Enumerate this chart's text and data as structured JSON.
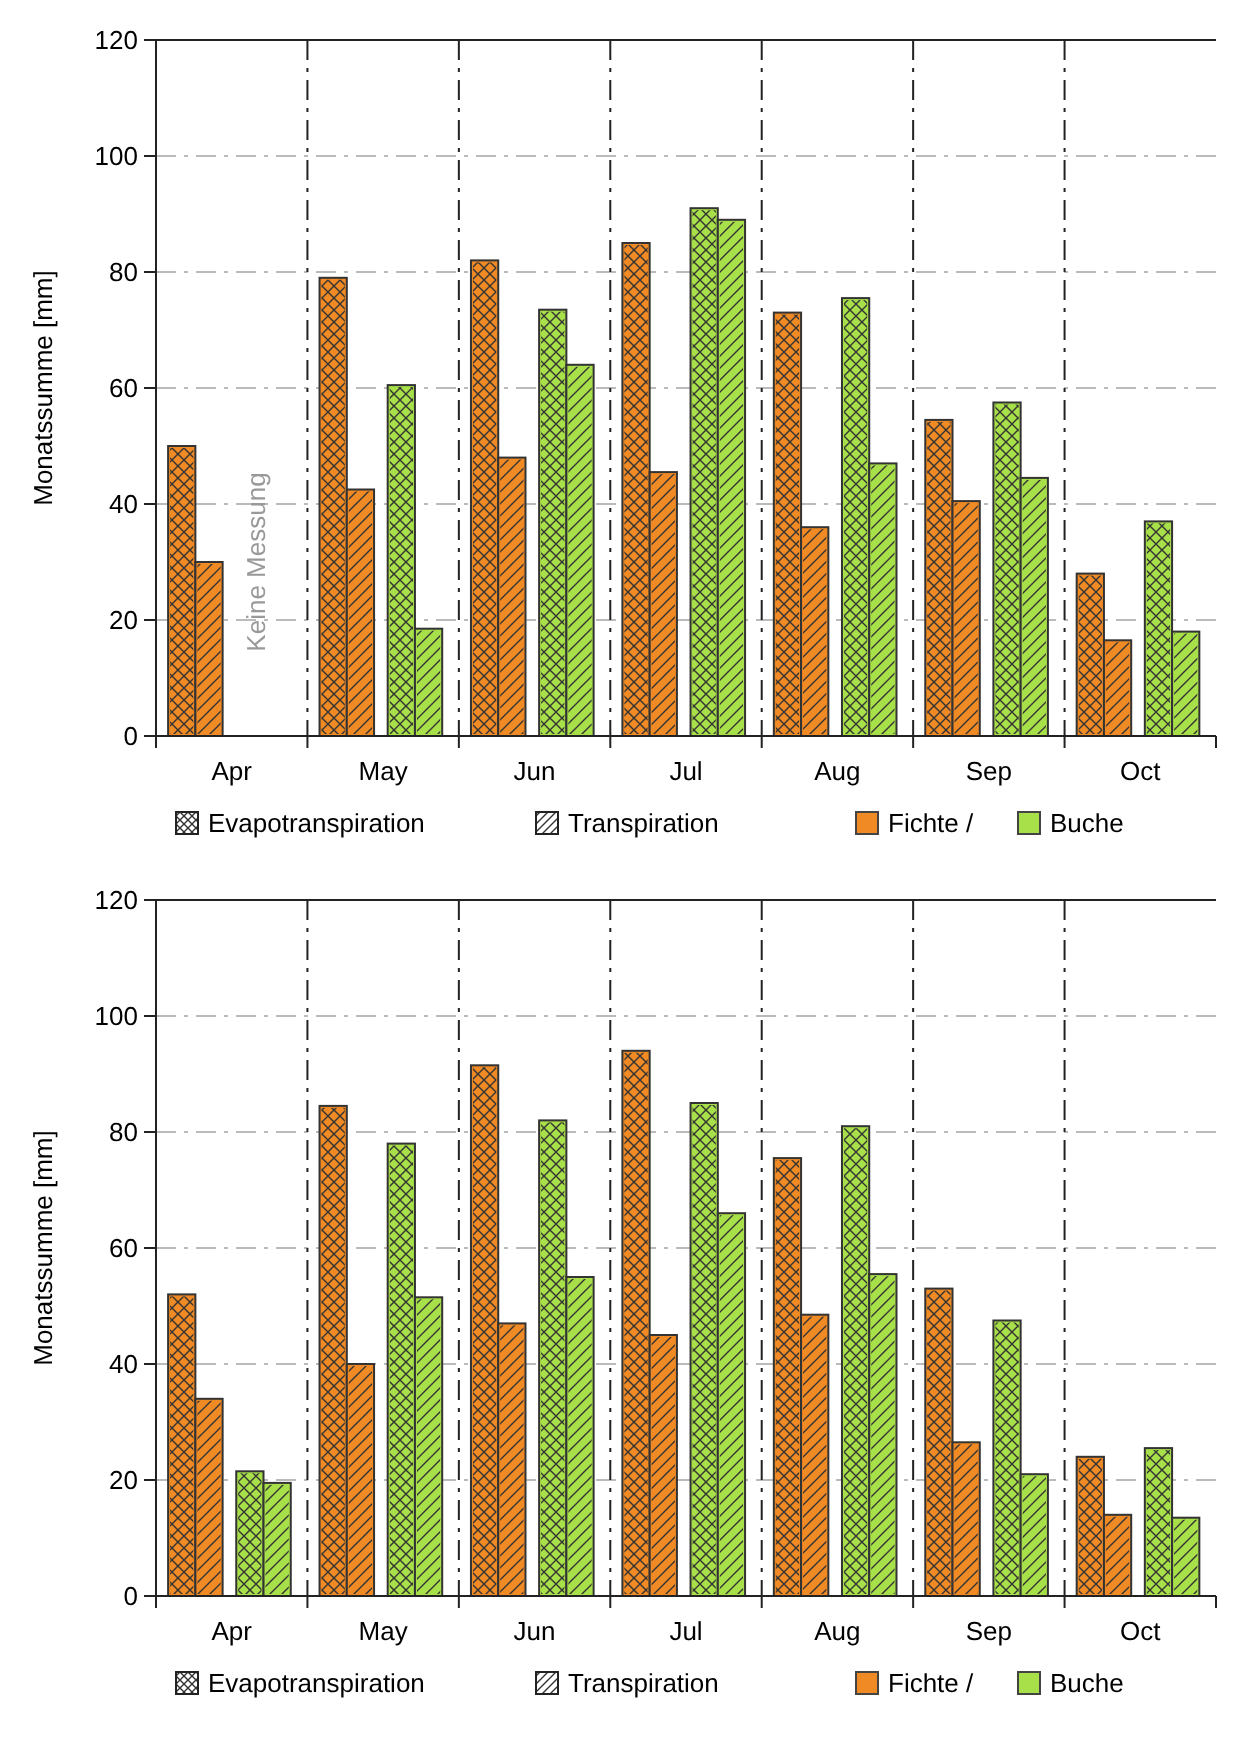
{
  "chart_data": [
    {
      "type": "bar",
      "ylabel": "Monatssumme [mm]",
      "categories": [
        "Apr",
        "May",
        "Jun",
        "Jul",
        "Aug",
        "Sep",
        "Oct"
      ],
      "series": [
        {
          "color": "#f08a24",
          "values": [
            50,
            79,
            82,
            85,
            73,
            54.5,
            28
          ]
        },
        {
          "color": "#f08a24",
          "values": [
            30,
            42.5,
            48,
            45.5,
            36,
            40.5,
            16.5
          ]
        },
        {
          "color": "#a8e04a",
          "values": [
            null,
            60.5,
            73.5,
            91,
            75.5,
            57.5,
            37
          ]
        },
        {
          "color": "#a8e04a",
          "values": [
            null,
            18.5,
            64,
            89,
            47,
            44.5,
            18
          ]
        }
      ],
      "ylim": [
        0,
        120
      ],
      "yticks": [
        0,
        20,
        40,
        60,
        80,
        100,
        120
      ],
      "grid": true,
      "annotations": [
        "Evapotranspiration",
        "Transpiration",
        "Fichte /",
        "Buche",
        "Keine Messung"
      ]
    },
    {
      "type": "bar",
      "ylabel": "Monatssumme [mm]",
      "categories": [
        "Apr",
        "May",
        "Jun",
        "Jul",
        "Aug",
        "Sep",
        "Oct"
      ],
      "series": [
        {
          "color": "#f08a24",
          "values": [
            52,
            84.5,
            91.5,
            94,
            75.5,
            53,
            24
          ]
        },
        {
          "color": "#f08a24",
          "values": [
            34,
            40,
            47,
            45,
            48.5,
            26.5,
            14
          ]
        },
        {
          "color": "#a8e04a",
          "values": [
            21.5,
            78,
            82,
            85,
            81,
            47.5,
            25.5
          ]
        },
        {
          "color": "#a8e04a",
          "values": [
            19.5,
            51.5,
            55,
            66,
            55.5,
            21,
            13.5
          ]
        }
      ],
      "ylim": [
        0,
        120
      ],
      "yticks": [
        0,
        20,
        40,
        60,
        80,
        100,
        120
      ],
      "grid": true,
      "annotations": [
        "Evapotranspiration",
        "Transpiration",
        "Fichte /",
        "Buche"
      ]
    }
  ]
}
